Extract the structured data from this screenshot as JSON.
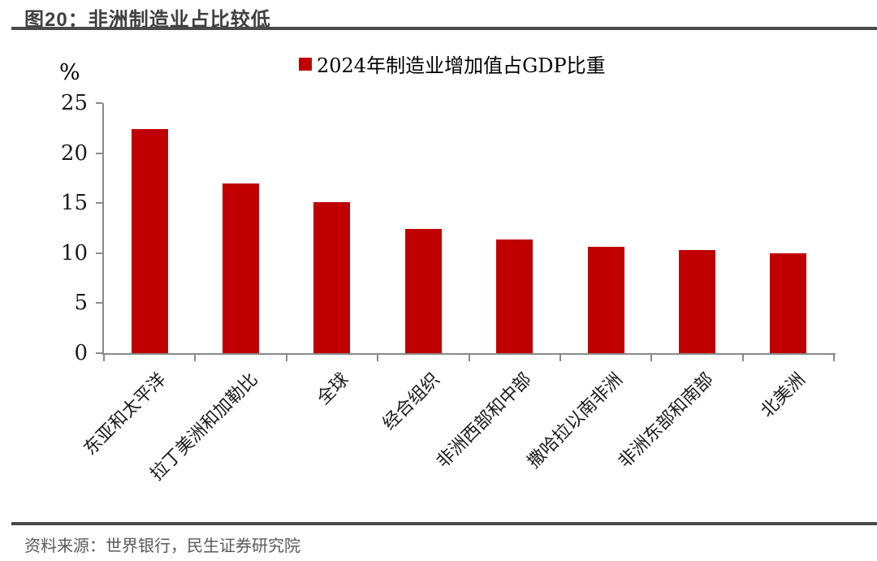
{
  "figure": {
    "title": "图20：非洲制造业占比较低",
    "source": "资料来源：世界银行，民生证券研究院"
  },
  "chart_data": {
    "type": "bar",
    "title": "图20：非洲制造业占比较低",
    "legend": [
      "2024年制造业增加值占GDP比重"
    ],
    "legend_position": "top",
    "unit_label": "%",
    "categories": [
      "东亚和太平洋",
      "拉丁美洲和加勒比",
      "全球",
      "经合组织",
      "非洲西部和中部",
      "撒哈拉以南非洲",
      "非洲东部和南部",
      "北美洲"
    ],
    "values": [
      22.4,
      17.0,
      15.1,
      12.4,
      11.4,
      10.6,
      10.3,
      10.0
    ],
    "xlabel": "",
    "ylabel": "%",
    "ylim": [
      0,
      25
    ],
    "yticks": [
      0,
      5,
      10,
      15,
      20,
      25
    ],
    "grid": false,
    "bar_color": "#c00000",
    "axis_color": "#898989"
  }
}
